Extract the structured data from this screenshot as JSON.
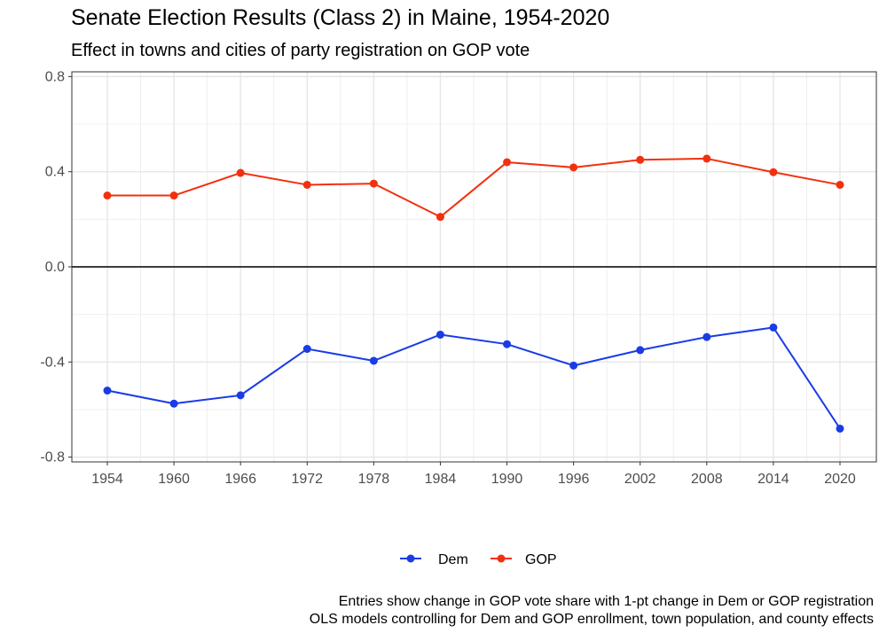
{
  "chart_data": {
    "type": "line",
    "title": "Senate Election Results (Class 2) in Maine, 1954-2020",
    "subtitle": "Effect in towns and cities of party registration on GOP vote",
    "xlabel": "",
    "ylabel": "",
    "x": [
      1954,
      1960,
      1966,
      1972,
      1978,
      1984,
      1990,
      1996,
      2002,
      2008,
      2014,
      2020
    ],
    "x_tick_labels": [
      "1954",
      "1960",
      "1966",
      "1972",
      "1978",
      "1984",
      "1990",
      "1996",
      "2002",
      "2008",
      "2014",
      "2020"
    ],
    "y_ticks": [
      0.8,
      0.4,
      0.0,
      -0.4,
      -0.8
    ],
    "y_tick_labels": [
      "0.8",
      "0.4",
      "0.0",
      "-0.4",
      "-0.8"
    ],
    "ylim": [
      -0.82,
      0.82
    ],
    "reference_line": 0.0,
    "grid": true,
    "legend_position": "bottom",
    "series": [
      {
        "name": "Dem",
        "color": "#1a3ce6",
        "values": [
          -0.52,
          -0.575,
          -0.54,
          -0.345,
          -0.395,
          -0.285,
          -0.325,
          -0.415,
          -0.35,
          -0.295,
          -0.255,
          -0.68
        ]
      },
      {
        "name": "GOP",
        "color": "#f2300f",
        "values": [
          0.3,
          0.3,
          0.395,
          0.345,
          0.35,
          0.21,
          0.44,
          0.418,
          0.45,
          0.455,
          0.398,
          0.345
        ]
      }
    ],
    "caption": [
      "Entries show change in GOP vote share with 1-pt change in Dem or GOP registration",
      "OLS models controlling for Dem and GOP enrollment, town population, and county effects"
    ]
  }
}
